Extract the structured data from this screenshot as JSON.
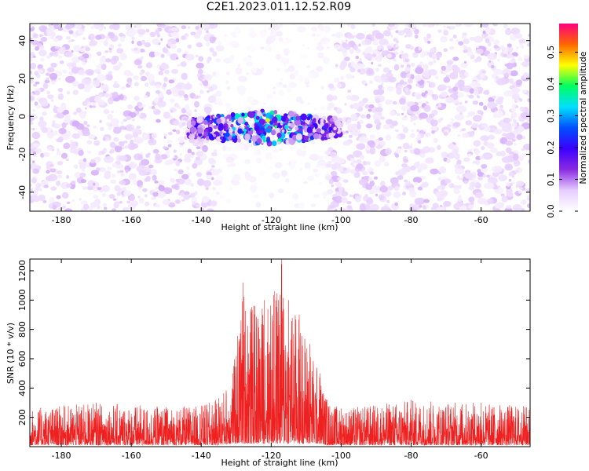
{
  "title": "C2E1.2023.011.12.52.R09",
  "colors": {
    "signal_line": "#ee2020",
    "axis": "#000000",
    "colormap": [
      "#ffffff",
      "#e6ccff",
      "#8a2be2",
      "#3a00ff",
      "#0050ff",
      "#00e0ff",
      "#00ff60",
      "#ffff00",
      "#ff6600",
      "#ff0080"
    ]
  },
  "chart_data": [
    {
      "type": "heatmap",
      "xlabel": "Height of straight line (km)",
      "ylabel": "Frequency (Hz)",
      "xlim": [
        -189,
        -46
      ],
      "ylim": [
        -50,
        49
      ],
      "xticks": [
        -180,
        -160,
        -140,
        -120,
        -100,
        -80,
        -60
      ],
      "yticks": [
        -40,
        -20,
        0,
        20,
        40
      ],
      "colorbar": {
        "label": "Normalized spectral amplitude",
        "range": [
          0,
          0.59
        ],
        "ticks": [
          0.0,
          0.1,
          0.2,
          0.3,
          0.4,
          0.5
        ]
      },
      "background_band": {
        "x": [
          -189,
          -46
        ],
        "y": [
          -50,
          49
        ],
        "amplitude": [
          0.02,
          0.08
        ]
      },
      "quiet_gap": {
        "x": [
          -136,
          -104
        ],
        "amplitude": [
          0.0,
          0.02
        ]
      },
      "signal_cluster": {
        "x": [
          -144,
          -100
        ],
        "y": [
          -15,
          3
        ],
        "center_y": -6,
        "amplitude": [
          0.05,
          0.45
        ],
        "peak": {
          "x": -121,
          "y": -2,
          "value": 0.45
        }
      }
    },
    {
      "type": "line",
      "xlabel": "Height of straight line (km)",
      "ylabel": "SNR (10 * v/v)",
      "xlim": [
        -189,
        -46
      ],
      "ylim": [
        0,
        1280
      ],
      "xticks": [
        -180,
        -160,
        -140,
        -120,
        -100,
        -80,
        -60
      ],
      "yticks": [
        200,
        400,
        600,
        800,
        1000,
        1200
      ],
      "series": [
        {
          "envelope_x": [
            -189,
            -170,
            -150,
            -140,
            -135,
            -131,
            -128,
            -125,
            -122,
            -119,
            -117,
            -115,
            -112,
            -109,
            -106,
            -104,
            -100,
            -80,
            -60,
            -46
          ],
          "envelope_max": [
            260,
            300,
            270,
            280,
            330,
            500,
            1120,
            960,
            1000,
            1060,
            1280,
            1000,
            900,
            700,
            500,
            320,
            260,
            320,
            300,
            280
          ],
          "envelope_min": [
            10,
            10,
            10,
            10,
            10,
            20,
            20,
            20,
            20,
            20,
            20,
            20,
            20,
            20,
            20,
            10,
            10,
            10,
            10,
            10
          ]
        }
      ]
    }
  ]
}
